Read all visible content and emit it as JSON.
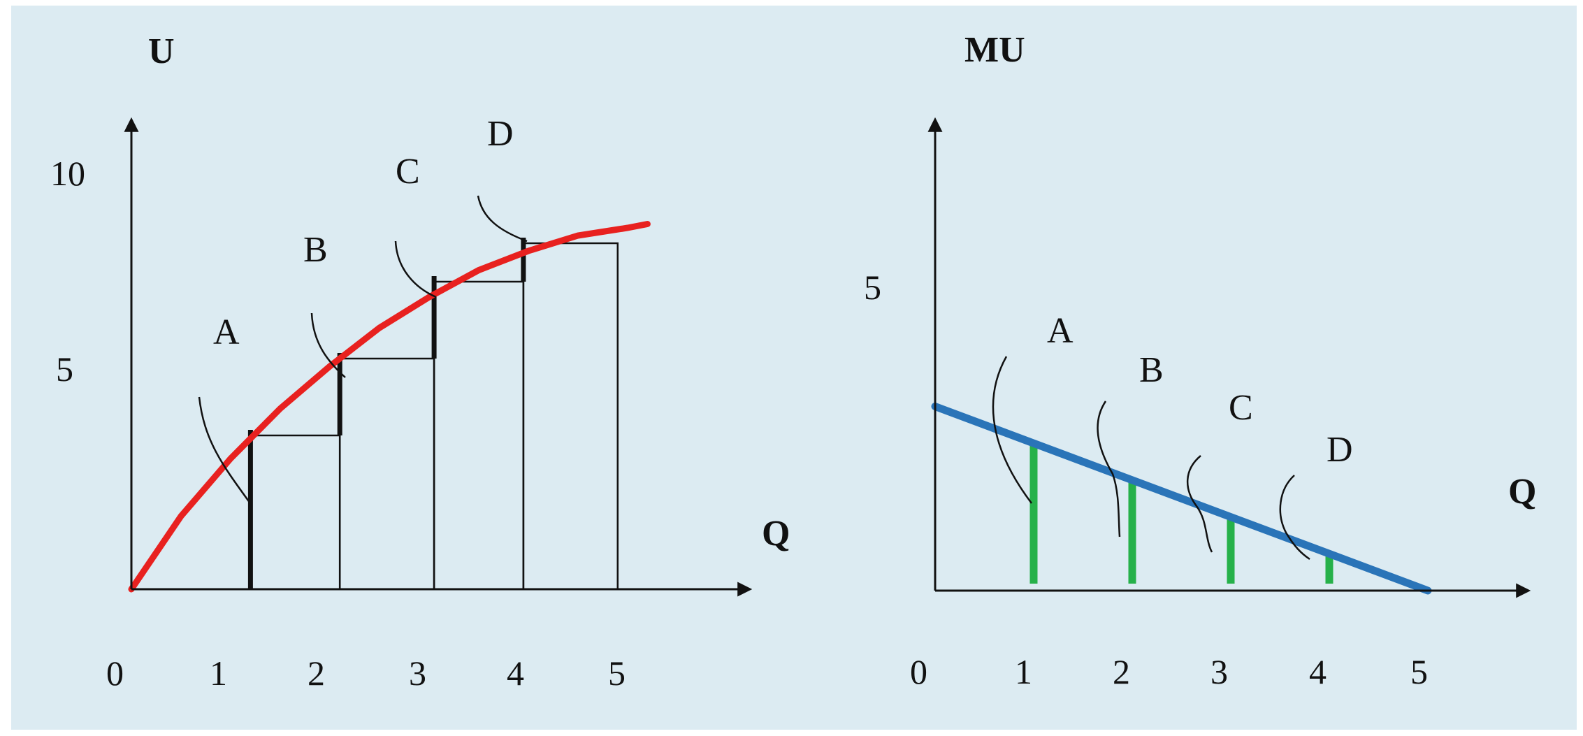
{
  "left": {
    "y_axis_label": "U",
    "x_axis_label": "Q",
    "y_ticks": [
      "10",
      "5"
    ],
    "x_ticks": [
      "0",
      "1",
      "2",
      "3",
      "4",
      "5"
    ],
    "point_labels": [
      "A",
      "B",
      "C",
      "D"
    ],
    "curve_color": "#e8211f",
    "chart_data": {
      "type": "line",
      "series": [
        {
          "x": [
            0,
            0.5,
            1,
            1.5,
            2,
            2.5,
            3,
            3.5,
            4,
            4.5,
            5,
            5.2
          ],
          "y": [
            0,
            1.9,
            3.4,
            4.7,
            5.8,
            6.8,
            7.6,
            8.3,
            8.8,
            9.2,
            9.4,
            9.5
          ]
        }
      ],
      "bars": {
        "left_edges": [
          1.2,
          2.1,
          3.05,
          3.95
        ],
        "right_edges": [
          2.1,
          3.05,
          3.95,
          4.9
        ],
        "heights": [
          4.0,
          6.0,
          8.0,
          9.0
        ]
      },
      "ylim": [
        0,
        11.5
      ],
      "xlim": [
        0,
        6
      ]
    }
  },
  "right": {
    "y_axis_label": "MU",
    "x_axis_label": "Q",
    "y_ticks": [
      "5"
    ],
    "x_ticks": [
      "0",
      "1",
      "2",
      "3",
      "4",
      "5"
    ],
    "point_labels": [
      "A",
      "B",
      "C",
      "D"
    ],
    "line_color": "#2a74b8",
    "bar_color": "#26b14a",
    "chart_data": {
      "type": "line",
      "series": [
        {
          "x": [
            0,
            5
          ],
          "y": [
            3.1,
            0
          ]
        }
      ],
      "bars": {
        "x": [
          1,
          2,
          3,
          4
        ],
        "values": [
          2.5,
          1.9,
          1.2,
          0.6
        ]
      },
      "ylim": [
        0,
        7.5
      ],
      "xlim": [
        0,
        6
      ]
    }
  }
}
